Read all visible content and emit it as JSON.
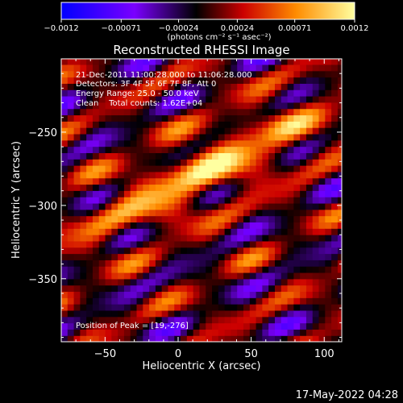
{
  "colorbar": {
    "ticks": [
      "−0.0012",
      "−0.00071",
      "−0.00024",
      "0.00024",
      "0.00071",
      "0.0012"
    ],
    "tick_values": [
      -0.0012,
      -0.00071,
      -0.00024,
      0.00024,
      0.00071,
      0.0012
    ],
    "range": [
      -0.0012,
      0.0012
    ],
    "unit_label": "(photons cm⁻² s⁻¹ asec⁻²)",
    "colors": [
      "#0000ff",
      "#7a00ff",
      "#000000",
      "#cc0000",
      "#ff8c00",
      "#ffffa0"
    ]
  },
  "chart_data": {
    "type": "heatmap",
    "title": "Reconstructed RHESSI Image",
    "xlabel": "Heliocentric X (arcsec)",
    "ylabel": "Heliocentric Y (arcsec)",
    "xlim": [
      -80,
      112
    ],
    "ylim": [
      -393,
      -200
    ],
    "x_ticks": [
      -50,
      0,
      50,
      100
    ],
    "y_ticks": [
      -250,
      -300,
      -350
    ],
    "x_tick_labels": [
      "−50",
      "0",
      "50",
      "100"
    ],
    "y_tick_labels": [
      "−250",
      "−300",
      "−350"
    ],
    "peak": [
      19,
      -276
    ],
    "band_tilt_deg": 27,
    "annotations": [
      "21-Dec-2011 11:00:28.000 to 11:06:28.000",
      "Detectors: 3F 4F 5F 6F 7F 8F, Att 0",
      "Energy Range: 25.0 - 50.0 keV",
      "Clean    Total counts: 1.62E+04"
    ],
    "peak_label": "Position of Peak = [19,-276]"
  },
  "footer": {
    "timestamp": "17-May-2022 04:28"
  }
}
